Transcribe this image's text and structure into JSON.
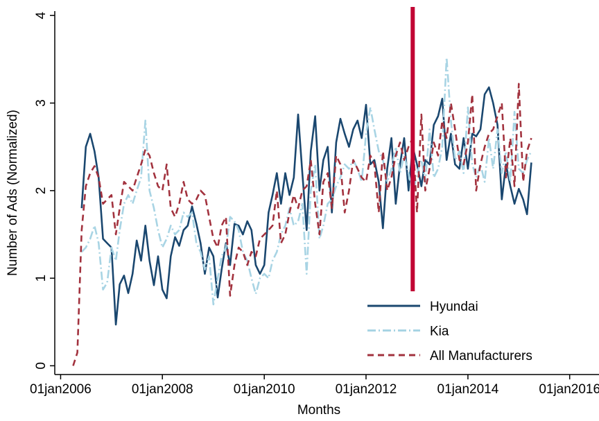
{
  "chart_data": {
    "type": "line",
    "y_label": "Number of Ads (Normalized)",
    "x_label": "Months",
    "x": [
      "2006-04-01",
      "2006-05-01",
      "2006-06-01",
      "2006-07-01",
      "2006-08-01",
      "2006-09-01",
      "2006-10-01",
      "2006-11-01",
      "2006-12-01",
      "2007-01-01",
      "2007-02-01",
      "2007-03-01",
      "2007-04-01",
      "2007-05-01",
      "2007-06-01",
      "2007-07-01",
      "2007-08-01",
      "2007-09-01",
      "2007-10-01",
      "2007-11-01",
      "2007-12-01",
      "2008-01-01",
      "2008-02-01",
      "2008-03-01",
      "2008-04-01",
      "2008-05-01",
      "2008-06-01",
      "2008-07-01",
      "2008-08-01",
      "2008-09-01",
      "2008-10-01",
      "2008-11-01",
      "2008-12-01",
      "2009-01-01",
      "2009-02-01",
      "2009-03-01",
      "2009-04-01",
      "2009-05-01",
      "2009-06-01",
      "2009-07-01",
      "2009-08-01",
      "2009-09-01",
      "2009-10-01",
      "2009-11-01",
      "2009-12-01",
      "2010-01-01",
      "2010-02-01",
      "2010-03-01",
      "2010-04-01",
      "2010-05-01",
      "2010-06-01",
      "2010-07-01",
      "2010-08-01",
      "2010-09-01",
      "2010-10-01",
      "2010-11-01",
      "2010-12-01",
      "2011-01-01",
      "2011-02-01",
      "2011-03-01",
      "2011-04-01",
      "2011-05-01",
      "2011-06-01",
      "2011-07-01",
      "2011-08-01",
      "2011-09-01",
      "2011-10-01",
      "2011-11-01",
      "2011-12-01",
      "2012-01-01",
      "2012-02-01",
      "2012-03-01",
      "2012-04-01",
      "2012-05-01",
      "2012-06-01",
      "2012-07-01",
      "2012-08-01",
      "2012-09-01",
      "2012-10-01",
      "2012-11-01",
      "2012-12-01",
      "2013-01-01",
      "2013-02-01",
      "2013-03-01",
      "2013-04-01",
      "2013-05-01",
      "2013-06-01",
      "2013-07-01",
      "2013-08-01",
      "2013-09-01",
      "2013-10-01",
      "2013-11-01",
      "2013-12-01",
      "2014-01-01",
      "2014-02-01",
      "2014-03-01",
      "2014-04-01",
      "2014-05-01",
      "2014-06-01",
      "2014-07-01",
      "2014-08-01",
      "2014-09-01",
      "2014-10-01",
      "2014-11-01",
      "2014-12-01",
      "2015-01-01",
      "2015-02-01",
      "2015-03-01",
      "2015-04-01"
    ],
    "series": [
      {
        "name": "Hyundai",
        "color": "#1a476f",
        "line_style": "solid",
        "values": [
          null,
          null,
          1.8,
          2.5,
          2.65,
          2.45,
          2.15,
          1.45,
          1.4,
          1.35,
          0.47,
          0.93,
          1.03,
          0.83,
          1.05,
          1.43,
          1.2,
          1.6,
          1.2,
          0.92,
          1.25,
          0.87,
          0.77,
          1.25,
          1.47,
          1.37,
          1.55,
          1.6,
          1.82,
          1.62,
          1.4,
          1.05,
          1.35,
          1.25,
          0.78,
          1.1,
          1.4,
          1.15,
          1.62,
          1.6,
          1.5,
          1.65,
          1.55,
          1.15,
          1.05,
          1.15,
          1.75,
          1.95,
          2.2,
          1.85,
          2.2,
          1.95,
          2.15,
          2.87,
          2.2,
          1.55,
          2.45,
          2.85,
          2.0,
          2.35,
          2.5,
          1.75,
          2.55,
          2.82,
          2.65,
          2.5,
          2.7,
          2.8,
          2.6,
          2.98,
          2.3,
          2.35,
          2.1,
          1.57,
          2.25,
          2.6,
          1.85,
          2.3,
          2.6,
          2.0,
          2.5,
          2.3,
          2.05,
          2.35,
          2.3,
          2.75,
          2.85,
          3.05,
          2.35,
          2.65,
          2.3,
          2.25,
          2.6,
          2.25,
          2.65,
          2.62,
          2.7,
          3.1,
          3.18,
          3.0,
          2.75,
          1.9,
          2.3,
          2.05,
          1.85,
          2.02,
          1.9,
          1.73,
          2.32
        ]
      },
      {
        "name": "Kia",
        "color": "#a8d4e4",
        "line_style": "dash-dot",
        "values": [
          null,
          null,
          1.3,
          1.35,
          1.45,
          1.6,
          1.4,
          0.87,
          0.95,
          1.35,
          1.2,
          1.55,
          1.85,
          1.95,
          1.85,
          2.0,
          2.15,
          2.8,
          2.0,
          1.8,
          1.55,
          1.35,
          1.45,
          1.6,
          1.5,
          1.55,
          1.75,
          1.7,
          1.75,
          1.4,
          1.3,
          1.1,
          1.25,
          0.7,
          1.0,
          1.25,
          1.35,
          1.7,
          1.65,
          1.55,
          1.3,
          1.2,
          1.0,
          0.82,
          1.0,
          1.05,
          1.0,
          1.2,
          1.3,
          1.5,
          1.6,
          1.8,
          1.6,
          1.65,
          1.85,
          1.05,
          2.0,
          2.3,
          1.45,
          1.6,
          1.85,
          1.9,
          2.05,
          2.15,
          2.3,
          2.25,
          2.35,
          2.25,
          2.1,
          2.65,
          2.95,
          2.7,
          2.45,
          2.35,
          2.1,
          2.25,
          2.5,
          2.2,
          2.4,
          2.2,
          1.95,
          2.2,
          2.35,
          2.1,
          2.7,
          2.15,
          2.25,
          2.5,
          3.52,
          2.8,
          2.35,
          2.45,
          2.2,
          2.95,
          2.3,
          2.15,
          2.3,
          2.1,
          2.6,
          2.25,
          2.7,
          2.2,
          2.45,
          2.1,
          2.9,
          2.25,
          2.2,
          2.35,
          2.45
        ]
      },
      {
        "name": "All Manufacturers",
        "color": "#a2323e",
        "line_style": "dash",
        "values": [
          0.0,
          0.15,
          1.55,
          2.05,
          2.2,
          2.28,
          2.15,
          1.85,
          1.9,
          1.95,
          1.5,
          1.8,
          2.1,
          2.05,
          2.0,
          2.15,
          2.3,
          2.47,
          2.4,
          2.2,
          2.05,
          2.0,
          2.3,
          1.8,
          1.7,
          1.85,
          2.1,
          1.9,
          1.85,
          1.9,
          2.0,
          1.95,
          1.7,
          1.45,
          1.35,
          1.6,
          1.7,
          0.8,
          1.15,
          1.35,
          1.3,
          1.15,
          1.3,
          1.25,
          1.45,
          1.5,
          1.55,
          1.6,
          2.0,
          1.4,
          1.5,
          1.75,
          1.95,
          1.8,
          2.0,
          2.05,
          2.35,
          1.85,
          1.5,
          2.1,
          2.2,
          1.8,
          2.4,
          2.3,
          1.75,
          2.0,
          2.35,
          2.25,
          2.15,
          2.1,
          2.4,
          2.3,
          1.75,
          2.45,
          2.0,
          2.15,
          2.4,
          2.55,
          2.35,
          2.5,
          2.6,
          1.75,
          2.87,
          2.0,
          2.25,
          2.55,
          2.4,
          2.8,
          2.6,
          3.0,
          2.7,
          2.35,
          2.3,
          2.55,
          3.1,
          2.0,
          2.3,
          2.5,
          2.65,
          2.7,
          2.85,
          3.0,
          2.15,
          2.6,
          2.05,
          3.22,
          2.1,
          2.45,
          2.6
        ]
      }
    ],
    "vline": {
      "x": "2012-12-01",
      "color": "#c10534"
    },
    "xlim": [
      "2005-11-20",
      "2016-04-01"
    ],
    "xticks": [
      {
        "value": "2006-01-01",
        "label": "01jan2006"
      },
      {
        "value": "2008-01-01",
        "label": "01jan2008"
      },
      {
        "value": "2010-01-01",
        "label": "01jan2010"
      },
      {
        "value": "2012-01-01",
        "label": "01jan2012"
      },
      {
        "value": "2014-01-01",
        "label": "01jan2014"
      },
      {
        "value": "2016-01-01",
        "label": "01jan2016"
      }
    ],
    "ylim": [
      -0.1,
      4.05
    ],
    "yticks": [
      0,
      1,
      2,
      3,
      4
    ],
    "legend": "lower right",
    "grid": false
  }
}
